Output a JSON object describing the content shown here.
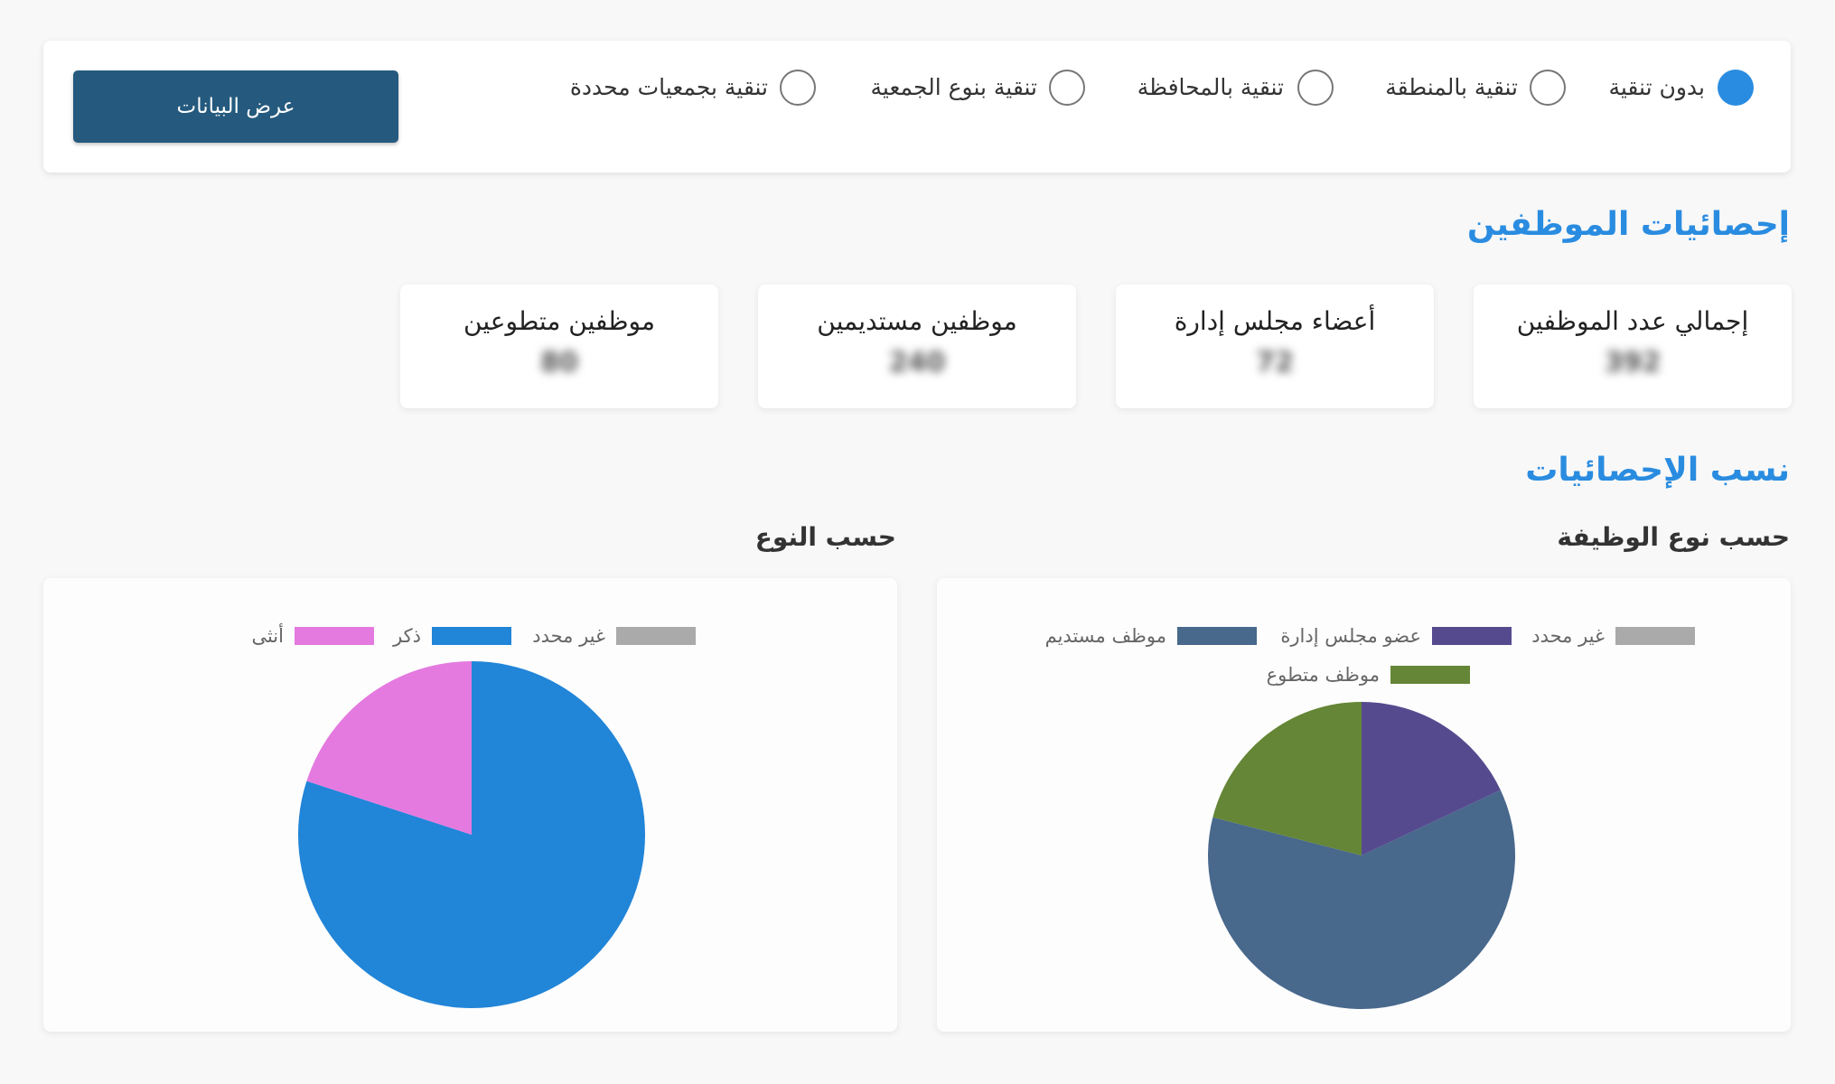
{
  "filters": {
    "options": [
      {
        "label": "بدون تنقية",
        "checked": true
      },
      {
        "label": "تنقية بالمنطقة",
        "checked": false
      },
      {
        "label": "تنقية بالمحافظة",
        "checked": false
      },
      {
        "label": "تنقية بنوع الجمعية",
        "checked": false
      },
      {
        "label": "تنقية بجمعيات محددة",
        "checked": false
      }
    ],
    "show_button": "عرض البيانات"
  },
  "employee_stats": {
    "title": "إحصائيات الموظفين",
    "cards": [
      {
        "label": "إجمالي عدد الموظفين",
        "value": "392"
      },
      {
        "label": "أعضاء مجلس إدارة",
        "value": "72"
      },
      {
        "label": "موظفين مستديمين",
        "value": "240"
      },
      {
        "label": "موظفين متطوعين",
        "value": "80"
      }
    ]
  },
  "ratios": {
    "title": "نسب الإحصائيات",
    "by_job_title": "حسب نوع الوظيفة",
    "by_gender_title": "حسب النوع"
  },
  "chart_data": [
    {
      "type": "pie",
      "legend": "top",
      "categories": [
        "غير محدد",
        "عضو مجلس إدارة",
        "موظف مستديم",
        "موظف متطوع"
      ],
      "values": [
        0,
        18,
        61,
        21
      ],
      "colors": [
        "#aaaaaa",
        "#564a8f",
        "#48688c",
        "#658636"
      ]
    },
    {
      "type": "pie",
      "legend": "top",
      "categories": [
        "غير محدد",
        "ذكر",
        "أنثى"
      ],
      "values": [
        0,
        80,
        20
      ],
      "colors": [
        "#aaaaaa",
        "#2185d8",
        "#e47ae0"
      ]
    }
  ]
}
